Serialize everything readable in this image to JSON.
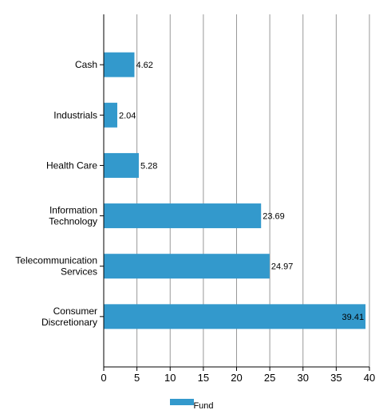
{
  "chart_data": {
    "type": "bar",
    "orientation": "horizontal",
    "categories": [
      [
        "Cash"
      ],
      [
        "Industrials"
      ],
      [
        "Health Care"
      ],
      [
        "Information",
        "Technology"
      ],
      [
        "Telecommunication",
        "Services"
      ],
      [
        "Consumer",
        "Discretionary"
      ]
    ],
    "series": [
      {
        "name": "Fund",
        "values": [
          4.62,
          2.04,
          5.28,
          23.69,
          24.97,
          39.41
        ],
        "color": "#3399cc"
      }
    ],
    "data_labels": [
      "4.62",
      "2.04",
      "5.28",
      "23.69",
      "24.97",
      "39.41"
    ],
    "xlim": [
      0,
      40
    ],
    "xticks": [
      0,
      5,
      10,
      15,
      20,
      25,
      30,
      35,
      40
    ],
    "grid": true,
    "legend_position": "bottom-center",
    "title": "",
    "xlabel": "",
    "ylabel": ""
  }
}
